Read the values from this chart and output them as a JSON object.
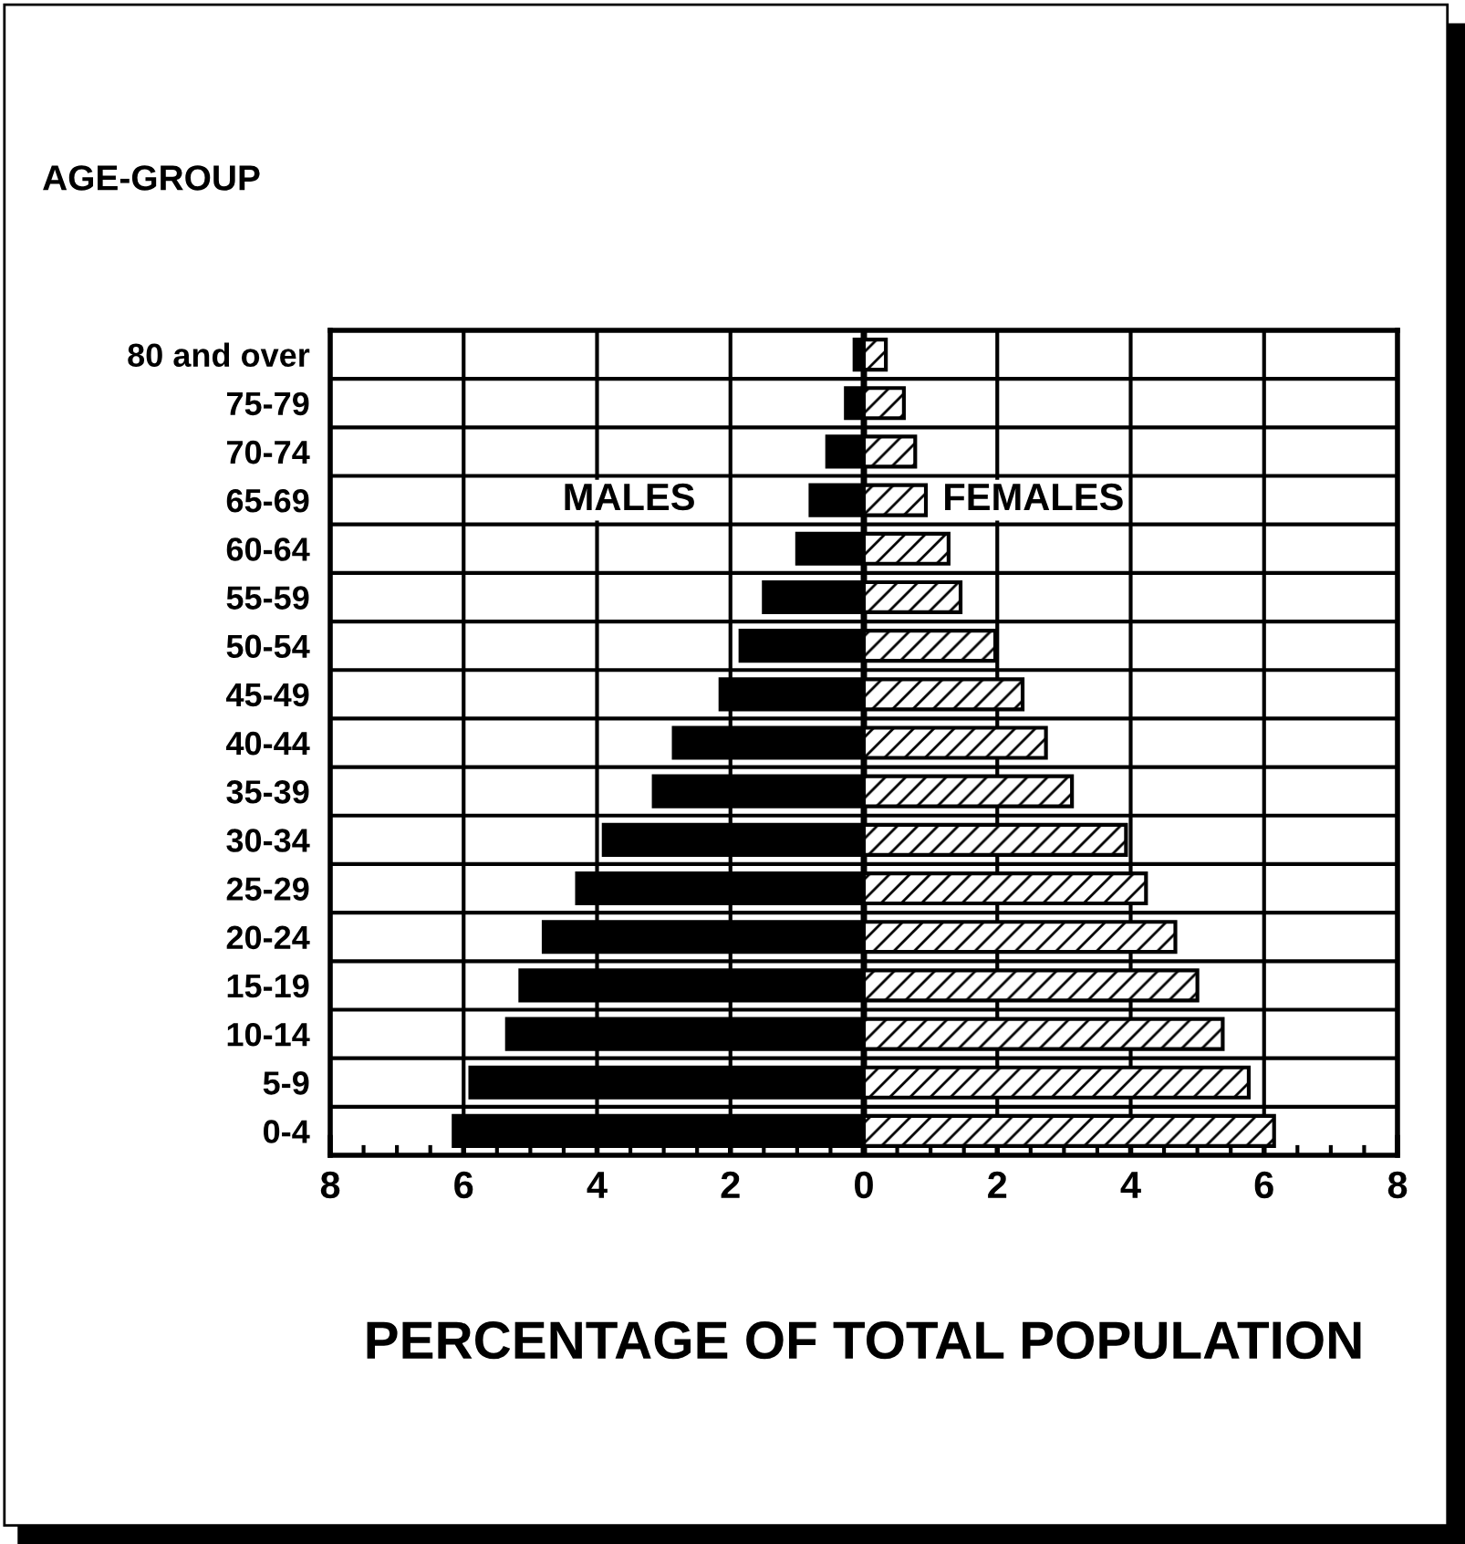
{
  "chart_data": {
    "type": "bar",
    "orientation": "horizontal",
    "stacked": true,
    "ylabel": "AGE-GROUP",
    "xlabel": "PERCENTAGE OF TOTAL POPULATION",
    "categories": [
      "80 and over",
      "75-79",
      "70-74",
      "65-69",
      "60-64",
      "55-59",
      "50-54",
      "45-49",
      "40-44",
      "35-39",
      "30-34",
      "25-29",
      "20-24",
      "15-19",
      "10-14",
      "5-9",
      "0-4"
    ],
    "series": [
      {
        "name": "MALES",
        "color": "#000000",
        "values": [
          -0.14,
          -0.27,
          -0.55,
          -0.8,
          -1.0,
          -1.5,
          -1.85,
          -2.15,
          -2.85,
          -3.15,
          -3.9,
          -4.3,
          -4.8,
          -5.15,
          -5.35,
          -5.9,
          -6.15
        ]
      },
      {
        "name": "FEMALES",
        "color": "#ffffff",
        "values": [
          0.33,
          0.6,
          0.77,
          0.93,
          1.27,
          1.45,
          1.97,
          2.38,
          2.73,
          3.12,
          3.93,
          4.23,
          4.67,
          5.0,
          5.38,
          5.77,
          6.15
        ]
      }
    ],
    "xlim": [
      -8,
      8
    ],
    "xticks": [
      {
        "value": -8,
        "label": "8"
      },
      {
        "value": -6,
        "label": "6"
      },
      {
        "value": -4,
        "label": "4"
      },
      {
        "value": -2,
        "label": "2"
      },
      0,
      2,
      4,
      6,
      8
    ],
    "grid": true,
    "legend": false
  }
}
